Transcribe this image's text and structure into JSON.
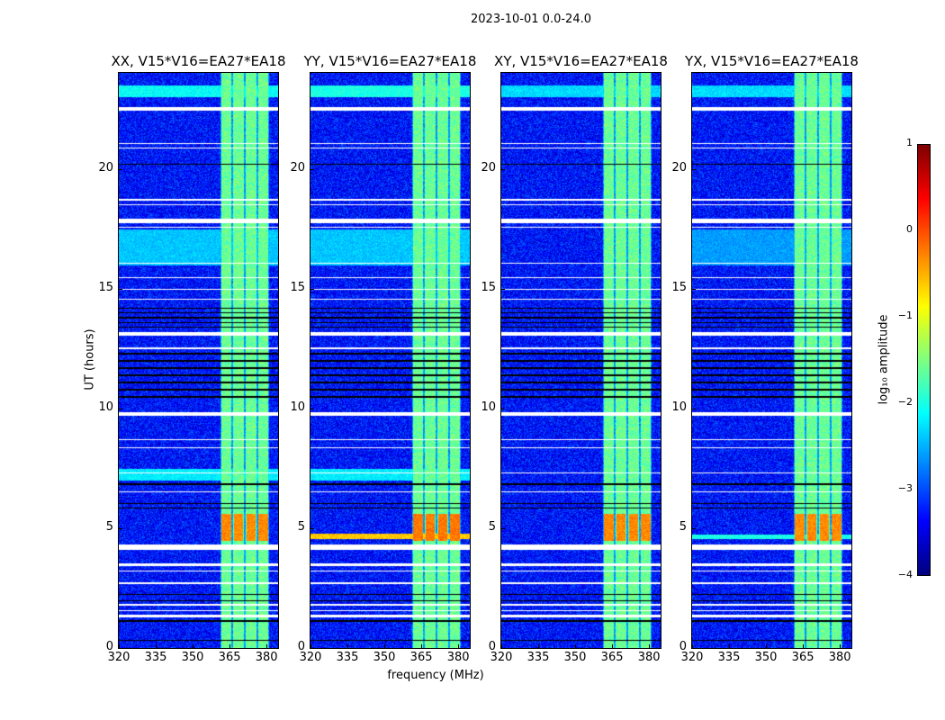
{
  "chart_data": {
    "type": "heatmap",
    "title": "2023-10-01 0.0-24.0",
    "xlabel": "frequency (MHz)",
    "ylabel": "UT (hours)",
    "xlim": [
      320,
      384.7
    ],
    "ylim": [
      0,
      24
    ],
    "xticks": [
      320,
      335,
      350,
      365,
      380
    ],
    "yticks": [
      0,
      5,
      10,
      15,
      20
    ],
    "colorbar": {
      "label": "log₁₀ amplitude",
      "range": [
        -4,
        1
      ],
      "ticks": [
        1,
        0,
        -1,
        -2,
        -3,
        -4
      ],
      "colormap": "jet"
    },
    "rfi_band_mhz": [
      361,
      381
    ],
    "subband_edges_mhz": [
      361,
      366,
      371,
      376,
      381
    ],
    "background_level": -3.3,
    "band_level": -1.6,
    "flagged_ut_ranges": [
      [
        22.45,
        22.6
      ],
      [
        21.05,
        21.1
      ],
      [
        20.85,
        20.9
      ],
      [
        18.7,
        18.75
      ],
      [
        18.5,
        18.55
      ],
      [
        17.75,
        17.95
      ],
      [
        17.55,
        17.6
      ],
      [
        16.05,
        16.1
      ],
      [
        15.45,
        15.5
      ],
      [
        14.95,
        15.0
      ],
      [
        14.55,
        14.6
      ],
      [
        13.05,
        13.2
      ],
      [
        12.5,
        12.55
      ],
      [
        9.7,
        9.85
      ],
      [
        8.7,
        8.75
      ],
      [
        8.35,
        8.4
      ],
      [
        7.3,
        7.35
      ],
      [
        6.5,
        6.55
      ],
      [
        4.1,
        4.35
      ],
      [
        3.45,
        3.55
      ],
      [
        3.2,
        3.25
      ],
      [
        2.7,
        2.75
      ],
      [
        1.8,
        1.85
      ],
      [
        1.55,
        1.6
      ],
      [
        1.3,
        1.42
      ]
    ],
    "dark_ut_lines": [
      20.2,
      14.2,
      14.0,
      13.8,
      13.6,
      13.4,
      12.3,
      12.0,
      11.7,
      11.4,
      11.1,
      10.8,
      10.5,
      6.85,
      6.05,
      5.85,
      2.25,
      2.0,
      1.15,
      0.35
    ],
    "panels": [
      {
        "title": "XX, V15*V16=EA27*EA18",
        "events": [
          {
            "ut": [
              4.5,
              5.6
            ],
            "level": -0.3
          },
          {
            "ut": [
              7.0,
              7.5
            ],
            "level": -2.2,
            "broadband": true
          },
          {
            "ut": [
              16.0,
              17.5
            ],
            "level": -2.4,
            "broadband": true
          },
          {
            "ut": [
              23.0,
              23.5
            ],
            "level": -2.1,
            "broadband": true
          }
        ]
      },
      {
        "title": "YY, V15*V16=EA27*EA18",
        "events": [
          {
            "ut": [
              4.5,
              5.6
            ],
            "level": -0.2
          },
          {
            "ut": [
              4.55,
              4.8
            ],
            "level": -0.6,
            "broadband": true
          },
          {
            "ut": [
              7.0,
              7.5
            ],
            "level": -2.2,
            "broadband": true
          },
          {
            "ut": [
              16.0,
              17.5
            ],
            "level": -2.4,
            "broadband": true
          },
          {
            "ut": [
              23.0,
              23.5
            ],
            "level": -2.0,
            "broadband": true
          }
        ]
      },
      {
        "title": "XY, V15*V16=EA27*EA18",
        "events": [
          {
            "ut": [
              4.5,
              5.6
            ],
            "level": -0.3
          },
          {
            "ut": [
              23.0,
              23.5
            ],
            "level": -2.3,
            "broadband": true
          }
        ]
      },
      {
        "title": "YX, V15*V16=EA27*EA18",
        "events": [
          {
            "ut": [
              4.5,
              5.6
            ],
            "level": -0.3
          },
          {
            "ut": [
              4.55,
              4.75
            ],
            "level": -2.0,
            "broadband": true
          },
          {
            "ut": [
              16.0,
              17.5
            ],
            "level": -2.6,
            "broadband": true
          },
          {
            "ut": [
              23.0,
              23.5
            ],
            "level": -2.3,
            "broadband": true
          }
        ]
      }
    ]
  }
}
